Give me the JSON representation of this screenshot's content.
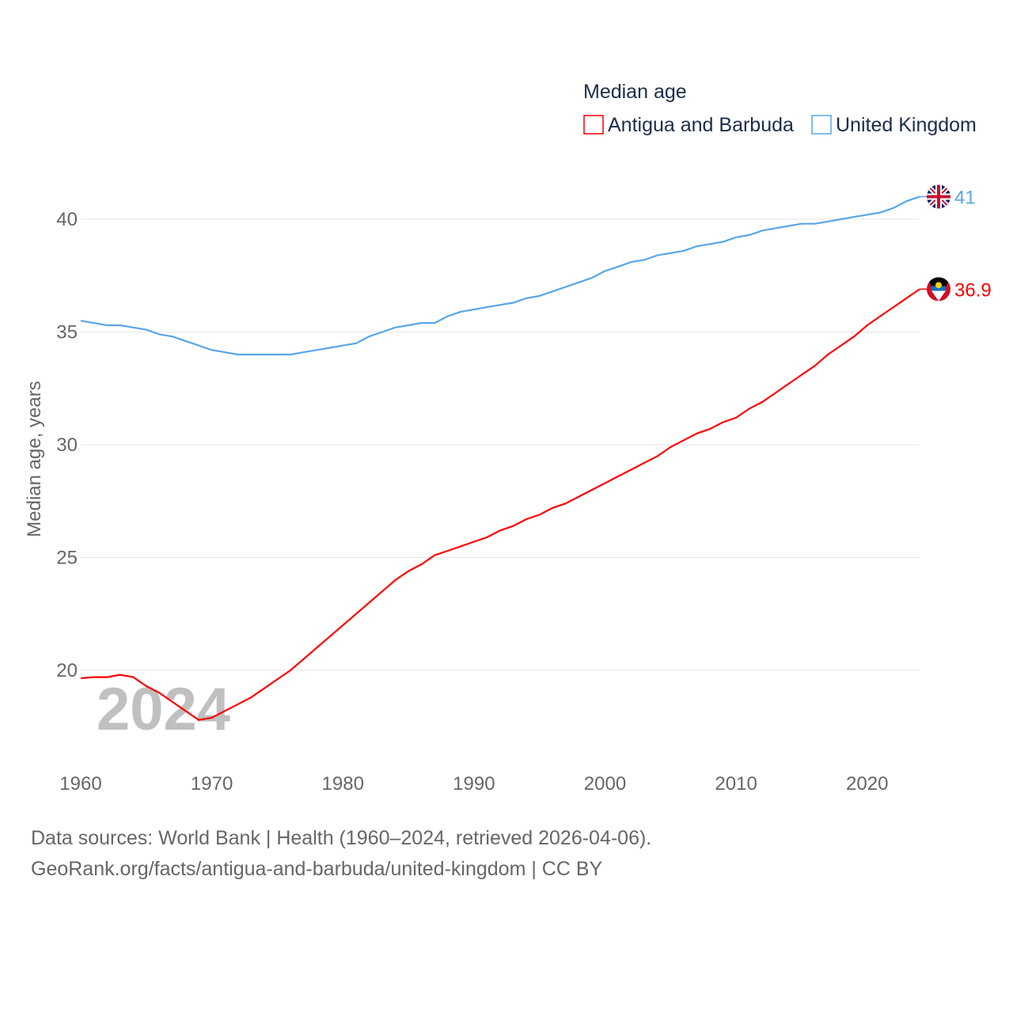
{
  "chart_data": {
    "type": "line",
    "title": "",
    "xlabel": "",
    "ylabel": "Median age, years",
    "xlim": [
      1960,
      2024
    ],
    "ylim": [
      17,
      42
    ],
    "yticks": [
      20,
      25,
      30,
      35,
      40
    ],
    "xticks": [
      1960,
      1970,
      1980,
      1990,
      2000,
      2010,
      2020
    ],
    "grid": true,
    "legend": {
      "title": "Median age",
      "placement": "top-right"
    },
    "year_watermark": "2024",
    "x": [
      1960,
      1961,
      1962,
      1963,
      1964,
      1965,
      1966,
      1967,
      1968,
      1969,
      1970,
      1971,
      1972,
      1973,
      1974,
      1975,
      1976,
      1977,
      1978,
      1979,
      1980,
      1981,
      1982,
      1983,
      1984,
      1985,
      1986,
      1987,
      1988,
      1989,
      1990,
      1991,
      1992,
      1993,
      1994,
      1995,
      1996,
      1997,
      1998,
      1999,
      2000,
      2001,
      2002,
      2003,
      2004,
      2005,
      2006,
      2007,
      2008,
      2009,
      2010,
      2011,
      2012,
      2013,
      2014,
      2015,
      2016,
      2017,
      2018,
      2019,
      2020,
      2021,
      2022,
      2023,
      2024
    ],
    "series": [
      {
        "name": "Antigua and Barbuda",
        "color": "#ff0000",
        "end_label": "36.9",
        "flag": "antigua-flag",
        "values": [
          19.65,
          19.7,
          19.7,
          19.8,
          19.7,
          19.3,
          19.0,
          18.6,
          18.2,
          17.8,
          17.9,
          18.2,
          18.5,
          18.8,
          19.2,
          19.6,
          20.0,
          20.5,
          21.0,
          21.5,
          22.0,
          22.5,
          23.0,
          23.5,
          24.0,
          24.4,
          24.7,
          25.1,
          25.3,
          25.5,
          25.7,
          25.9,
          26.2,
          26.4,
          26.7,
          26.9,
          27.2,
          27.4,
          27.7,
          28.0,
          28.3,
          28.6,
          28.9,
          29.2,
          29.5,
          29.9,
          30.2,
          30.5,
          30.7,
          31.0,
          31.2,
          31.6,
          31.9,
          32.3,
          32.7,
          33.1,
          33.5,
          34.0,
          34.4,
          34.8,
          35.3,
          35.7,
          36.1,
          36.5,
          36.9
        ]
      },
      {
        "name": "United Kingdom",
        "color": "#5aa5ea",
        "end_label": "41",
        "flag": "uk-flag",
        "values": [
          35.5,
          35.4,
          35.3,
          35.3,
          35.2,
          35.1,
          34.9,
          34.8,
          34.6,
          34.4,
          34.2,
          34.1,
          34.0,
          34.0,
          34.0,
          34.0,
          34.0,
          34.1,
          34.2,
          34.3,
          34.4,
          34.5,
          34.8,
          35.0,
          35.2,
          35.3,
          35.4,
          35.4,
          35.7,
          35.9,
          36.0,
          36.1,
          36.2,
          36.3,
          36.5,
          36.6,
          36.8,
          37.0,
          37.2,
          37.4,
          37.7,
          37.9,
          38.1,
          38.2,
          38.4,
          38.5,
          38.6,
          38.8,
          38.9,
          39.0,
          39.2,
          39.3,
          39.5,
          39.6,
          39.7,
          39.8,
          39.8,
          39.9,
          40.0,
          40.1,
          40.2,
          40.3,
          40.5,
          40.8,
          41.0
        ]
      }
    ]
  },
  "footer": {
    "line1": "Data sources: World Bank | Health (1960–2024, retrieved 2026-04-06).",
    "line2": "GeoRank.org/facts/antigua-and-barbuda/united-kingdom | CC BY"
  }
}
